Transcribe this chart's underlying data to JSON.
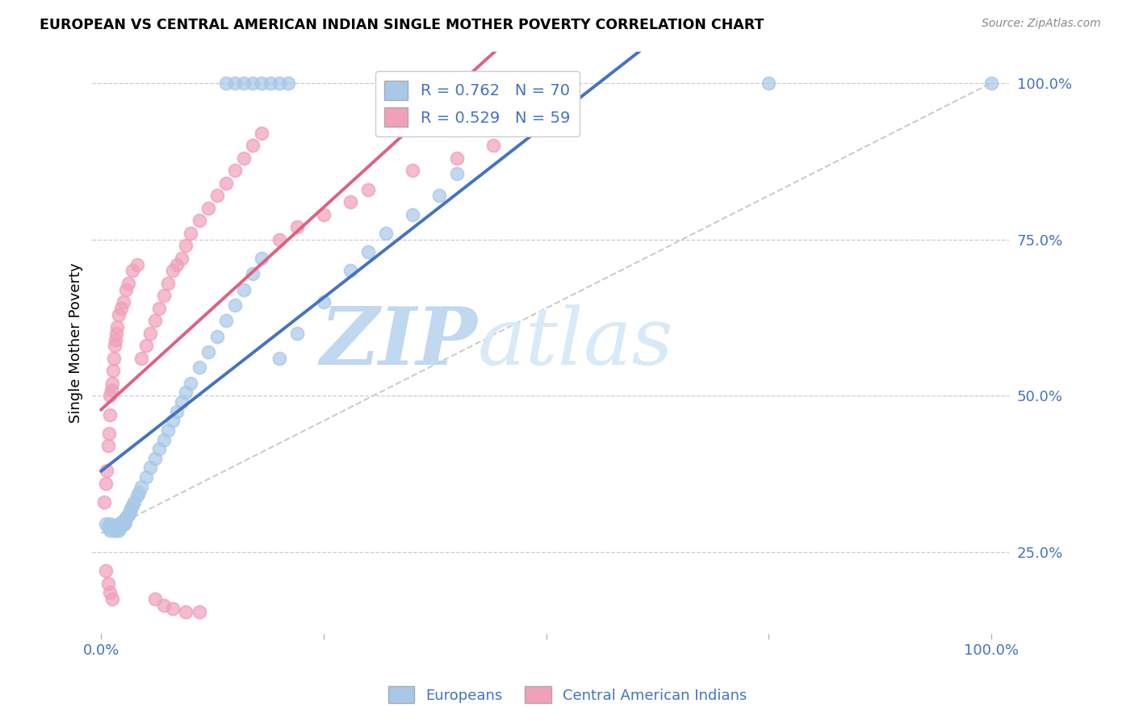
{
  "title": "EUROPEAN VS CENTRAL AMERICAN INDIAN SINGLE MOTHER POVERTY CORRELATION CHART",
  "source": "Source: ZipAtlas.com",
  "ylabel": "Single Mother Poverty",
  "legend_label1": "Europeans",
  "legend_label2": "Central American Indians",
  "r1": 0.762,
  "n1": 70,
  "r2": 0.529,
  "n2": 59,
  "ytick_labels": [
    "25.0%",
    "50.0%",
    "75.0%",
    "100.0%"
  ],
  "ytick_positions": [
    0.25,
    0.5,
    0.75,
    1.0
  ],
  "color_blue": "#A8C8E8",
  "color_pink": "#F0A0B8",
  "color_blue_line": "#4472C4",
  "color_pink_line": "#E06080",
  "color_blue_text": "#4472C4",
  "color_watermark_zip": "#C8DCF0",
  "color_watermark_atlas": "#D8E8F8",
  "background": "#FFFFFF",
  "blue_x": [
    0.005,
    0.008,
    0.01,
    0.01,
    0.012,
    0.013,
    0.015,
    0.015,
    0.016,
    0.017,
    0.018,
    0.019,
    0.02,
    0.02,
    0.021,
    0.022,
    0.023,
    0.023,
    0.024,
    0.025,
    0.026,
    0.027,
    0.028,
    0.03,
    0.031,
    0.032,
    0.033,
    0.035,
    0.037,
    0.04,
    0.042,
    0.045,
    0.05,
    0.055,
    0.06,
    0.065,
    0.07,
    0.075,
    0.08,
    0.085,
    0.09,
    0.095,
    0.1,
    0.11,
    0.12,
    0.13,
    0.14,
    0.15,
    0.16,
    0.17,
    0.18,
    0.2,
    0.22,
    0.25,
    0.28,
    0.3,
    0.32,
    0.35,
    0.38,
    0.4,
    0.14,
    0.15,
    0.16,
    0.17,
    0.18,
    0.19,
    0.2,
    0.21,
    0.75,
    1.0
  ],
  "blue_y": [
    0.295,
    0.29,
    0.285,
    0.295,
    0.288,
    0.292,
    0.285,
    0.29,
    0.285,
    0.29,
    0.288,
    0.292,
    0.285,
    0.295,
    0.29,
    0.295,
    0.292,
    0.298,
    0.295,
    0.3,
    0.295,
    0.298,
    0.305,
    0.31,
    0.312,
    0.315,
    0.32,
    0.325,
    0.33,
    0.34,
    0.345,
    0.355,
    0.37,
    0.385,
    0.4,
    0.415,
    0.43,
    0.445,
    0.46,
    0.475,
    0.49,
    0.505,
    0.52,
    0.545,
    0.57,
    0.595,
    0.62,
    0.645,
    0.67,
    0.695,
    0.72,
    0.56,
    0.6,
    0.65,
    0.7,
    0.73,
    0.76,
    0.79,
    0.82,
    0.855,
    1.0,
    1.0,
    1.0,
    1.0,
    1.0,
    1.0,
    1.0,
    1.0,
    1.0,
    1.0
  ],
  "pink_x": [
    0.003,
    0.005,
    0.006,
    0.008,
    0.009,
    0.01,
    0.01,
    0.011,
    0.012,
    0.013,
    0.014,
    0.015,
    0.016,
    0.017,
    0.018,
    0.02,
    0.022,
    0.025,
    0.028,
    0.03,
    0.035,
    0.04,
    0.045,
    0.05,
    0.055,
    0.06,
    0.065,
    0.07,
    0.075,
    0.08,
    0.085,
    0.09,
    0.095,
    0.1,
    0.11,
    0.12,
    0.13,
    0.14,
    0.15,
    0.16,
    0.17,
    0.18,
    0.2,
    0.22,
    0.25,
    0.28,
    0.3,
    0.35,
    0.4,
    0.44,
    0.005,
    0.008,
    0.01,
    0.012,
    0.06,
    0.07,
    0.08,
    0.095,
    0.11
  ],
  "pink_y": [
    0.33,
    0.36,
    0.38,
    0.42,
    0.44,
    0.47,
    0.5,
    0.51,
    0.52,
    0.54,
    0.56,
    0.58,
    0.59,
    0.6,
    0.61,
    0.63,
    0.64,
    0.65,
    0.67,
    0.68,
    0.7,
    0.71,
    0.56,
    0.58,
    0.6,
    0.62,
    0.64,
    0.66,
    0.68,
    0.7,
    0.71,
    0.72,
    0.74,
    0.76,
    0.78,
    0.8,
    0.82,
    0.84,
    0.86,
    0.88,
    0.9,
    0.92,
    0.75,
    0.77,
    0.79,
    0.81,
    0.83,
    0.86,
    0.88,
    0.9,
    0.22,
    0.2,
    0.185,
    0.175,
    0.175,
    0.165,
    0.16,
    0.155,
    0.155
  ]
}
